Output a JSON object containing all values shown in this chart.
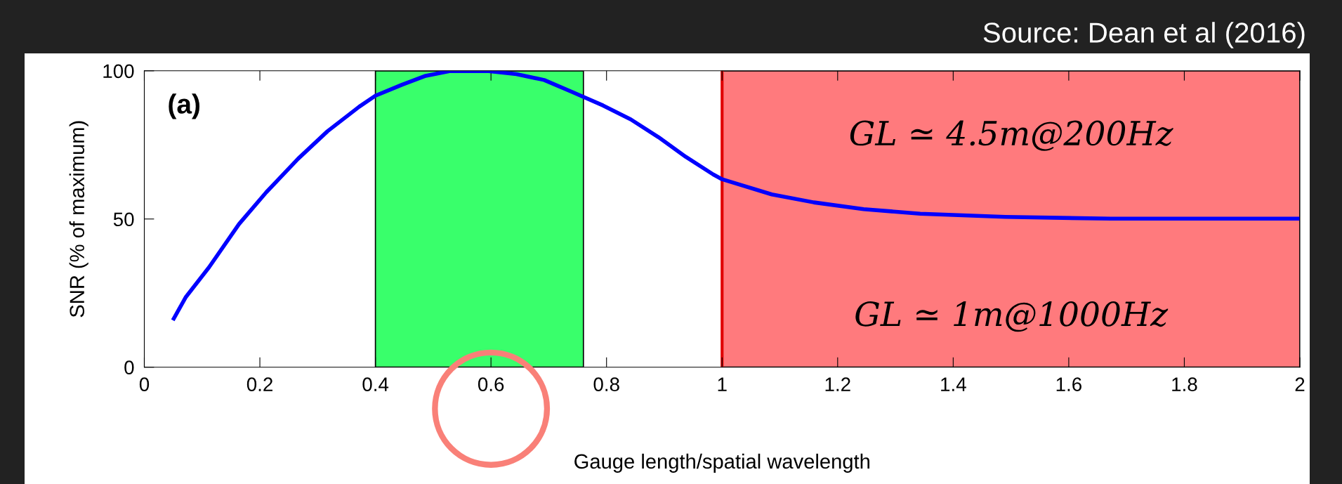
{
  "chart_data": {
    "type": "line",
    "xlabel": "Gauge length/spatial wavelength",
    "ylabel": "SNR (% of maximum)",
    "x": [
      0.051,
      0.072,
      0.112,
      0.164,
      0.211,
      0.266,
      0.317,
      0.372,
      0.4,
      0.446,
      0.487,
      0.528,
      0.596,
      0.644,
      0.692,
      0.74,
      0.794,
      0.842,
      0.89,
      0.937,
      0.985,
      1.0,
      1.086,
      1.159,
      1.245,
      1.343,
      1.49,
      1.673,
      2.0
    ],
    "series": [
      {
        "color": "#0000ff",
        "values": [
          16.4,
          23.7,
          33.7,
          48.3,
          59,
          70.3,
          79.6,
          87.9,
          91.6,
          95.3,
          98.3,
          99.9,
          99.9,
          98.9,
          96.9,
          92.9,
          88.3,
          83.6,
          77.6,
          71,
          65,
          63.4,
          58.3,
          55.6,
          53.3,
          51.8,
          50.7,
          50.1,
          50.1
        ]
      }
    ],
    "xlim": [
      0,
      2
    ],
    "ylim": [
      0,
      100
    ],
    "xticks": [
      0,
      0.2,
      0.4,
      0.6,
      0.8,
      1,
      1.2,
      1.4,
      1.6,
      1.8,
      2
    ],
    "yticks": [
      0,
      50,
      100
    ],
    "bands": [
      {
        "axis": "x",
        "from": 0.4,
        "to": 0.76,
        "color": "#39ff6b"
      },
      {
        "axis": "x",
        "from": 1,
        "to": 2,
        "color": "#ff7a7d"
      }
    ],
    "ref_lines": [
      {
        "axis": "x",
        "value": 1,
        "color": "#e00000"
      }
    ],
    "annotations": [
      "Source: Dean et al (2016)",
      "(a)",
      "GL ≃ 4.5m@200Hz",
      "GL ≃ 1m@1000Hz"
    ],
    "grid": false,
    "legend": false,
    "marker": "none",
    "line_style": "solid"
  }
}
